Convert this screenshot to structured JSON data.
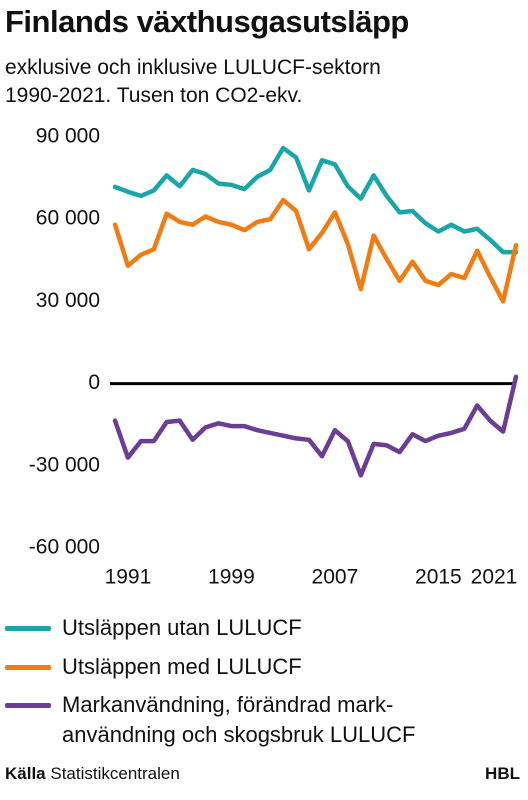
{
  "chart_data": {
    "type": "line",
    "title": "Finlands växthusgasutsläpp",
    "subtitle": "exklusive och inklusive LULUCF-sektorn\n1990-2021. Tusen ton CO2-ekv.",
    "x": [
      1990,
      1991,
      1992,
      1993,
      1994,
      1995,
      1996,
      1997,
      1998,
      1999,
      2000,
      2001,
      2002,
      2003,
      2004,
      2005,
      2006,
      2007,
      2008,
      2009,
      2010,
      2011,
      2012,
      2013,
      2014,
      2015,
      2016,
      2017,
      2018,
      2019,
      2020,
      2021
    ],
    "xlim": [
      1990,
      2021
    ],
    "xticks": [
      1991,
      1999,
      2007,
      2015,
      2021
    ],
    "ylim": [
      -60000,
      90000
    ],
    "yticks": [
      {
        "value": -60000,
        "label": "-60 000"
      },
      {
        "value": -30000,
        "label": "-30 000"
      },
      0,
      {
        "value": 30000,
        "label": "30 000"
      },
      {
        "value": 60000,
        "label": "60 000"
      },
      {
        "value": 90000,
        "label": "90 000"
      }
    ],
    "series": [
      {
        "name": "Utsläppen utan LULUCF",
        "color": "#1aa6a8",
        "values": [
          71800,
          70000,
          68500,
          70500,
          76000,
          72000,
          78000,
          76500,
          73000,
          72500,
          71000,
          75500,
          78000,
          86000,
          82500,
          70500,
          81500,
          80000,
          72000,
          67500,
          76000,
          68500,
          62500,
          63000,
          58500,
          55500,
          58000,
          55500,
          56500,
          52500,
          48000,
          48000
        ]
      },
      {
        "name": "Utsläppen med LULUCF",
        "color": "#f07d14",
        "values": [
          58000,
          43000,
          47000,
          49000,
          62000,
          59000,
          58000,
          61000,
          59000,
          58000,
          56000,
          59000,
          60000,
          67000,
          63000,
          49000,
          55000,
          62500,
          51000,
          34500,
          54000,
          45500,
          37500,
          44500,
          37500,
          36000,
          40000,
          38500,
          48500,
          39000,
          30000,
          50500
        ]
      },
      {
        "name": "Markanvändning, förändrad mark-\nanvändning och skogsbruk LULUCF",
        "color": "#6b3d97",
        "values": [
          -13500,
          -27000,
          -21000,
          -21000,
          -14000,
          -13500,
          -20500,
          -16000,
          -14500,
          -15500,
          -15500,
          -17000,
          -18000,
          -19000,
          -20000,
          -20500,
          -26500,
          -17000,
          -21000,
          -33500,
          -22000,
          -22500,
          -25000,
          -18500,
          -21000,
          -19000,
          -18000,
          -16500,
          -8000,
          -13500,
          -17500,
          2500
        ]
      }
    ],
    "source_label": "Källa",
    "source": "Statistikcentralen",
    "brand": "HBL"
  }
}
